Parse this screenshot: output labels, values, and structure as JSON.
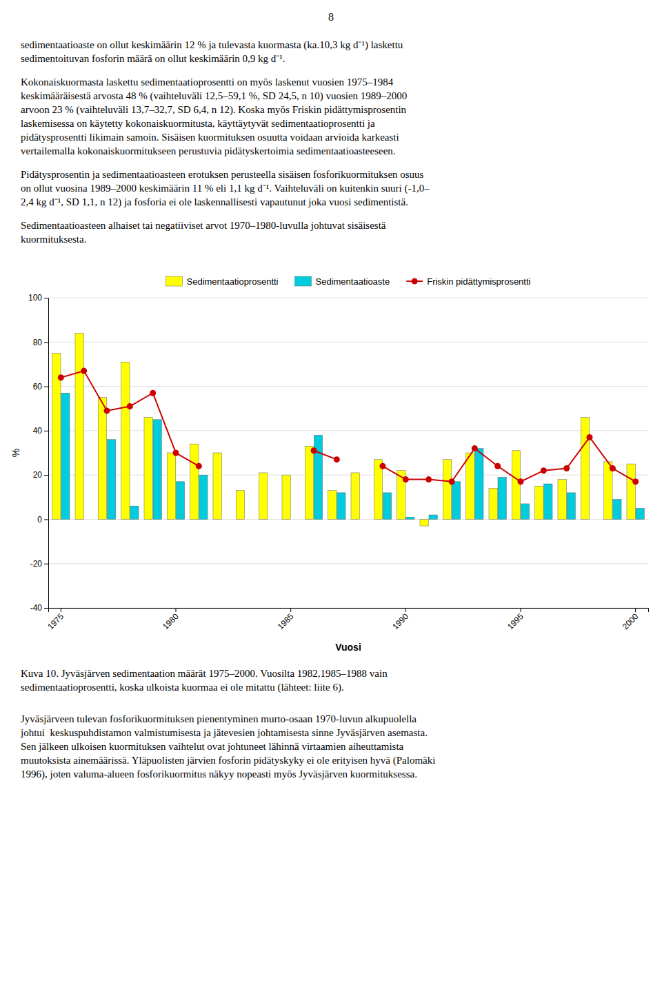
{
  "page_number": "8",
  "paragraphs_before": [
    [
      "sedimentaatioaste on ollut keskimäärin 12 % ja tulevasta kuormasta (ka.10,3 kg d⁻¹) laskettu",
      "sedimentoituvan fosforin määrä on ollut keskimäärin 0,9 kg d⁻¹."
    ],
    [
      "Kokonaiskuormasta laskettu sedimentaatioprosentti on myös laskenut vuosien 1975–1984",
      "keskimääräisestä arvosta 48 % (vaihteluväli 12,5–59,1 %, SD 24,5, n 10) vuosien 1989–2000",
      "arvoon 23 % (vaihteluväli 13,7–32,7, SD 6,4, n 12). Koska myös Friskin pidättymisprosentin",
      "laskemisessa on käytetty kokonaiskuormitusta, käyttäytyvät sedimentaatioprosentti ja",
      "pidätysprosentti likimain samoin. Sisäisen kuormituksen osuutta voidaan arvioida karkeasti",
      "vertailemalla kokonaiskuormitukseen perustuvia pidätyskertoimia sedimentaatioasteeseen."
    ],
    [
      "Pidätysprosentin ja sedimentaatioasteen erotuksen perusteella sisäisen fosforikuormituksen osuus",
      "on ollut vuosina 1989–2000 keskimäärin 11 % eli 1,1 kg d⁻¹. Vaihteluväli on kuitenkin suuri (-1,0–",
      "2,4 kg d⁻¹, SD 1,1, n 12) ja fosforia ei ole laskennallisesti vapautunut joka vuosi sedimentistä."
    ],
    [
      "Sedimentaatioasteen alhaiset tai negatiiviset arvot 1970–1980-luvulla johtuvat sisäisestä",
      "kuormituksesta."
    ]
  ],
  "paragraphs_after": [
    [
      "Jyväsjärveen tulevan fosforikuormituksen pienentyminen murto-osaan 1970-luvun alkupuolella",
      "johtui  keskuspuhdistamon valmistumisesta ja jätevesien johtamisesta sinne Jyväsjärven asemasta.",
      "Sen jälkeen ulkoisen kuormituksen vaihtelut ovat johtuneet lähinnä virtaamien aiheuttamista",
      "muutoksista ainemäärissä. Yläpuolisten järvien fosforin pidätyskyky ei ole erityisen hyvä (Palomäki",
      "1996), joten valuma-alueen fosforikuormitus näkyy nopeasti myös Jyväsjärven kuormituksessa."
    ]
  ],
  "chart_data": {
    "type": "bar",
    "caption": [
      "Kuva 10. Jyväsjärven sedimentaation määrät 1975–2000. Vuosilta 1982,1985–1988 vain",
      "sedimentaatioprosentti, koska ulkoista kuormaa ei ole mitattu (lähteet: liite 6)."
    ],
    "xlabel": "Vuosi",
    "ylabel": "%",
    "categories": [
      "1975",
      null,
      null,
      null,
      null,
      "1980",
      null,
      null,
      null,
      null,
      "1985",
      null,
      null,
      null,
      null,
      "1990",
      null,
      null,
      null,
      null,
      "1995",
      null,
      null,
      null,
      null,
      "2000"
    ],
    "series": [
      {
        "name": "Sedimentaatioprosentti",
        "type": "bar",
        "color": "#FFFF00",
        "values": [
          75,
          84,
          55,
          71,
          46,
          30,
          34,
          30,
          13,
          21,
          20,
          33,
          13,
          21,
          27,
          22,
          -3,
          27,
          30,
          14,
          31,
          15,
          18,
          46,
          26,
          25
        ]
      },
      {
        "name": "Sedimentaatioaste",
        "type": "bar",
        "color": "#00CCDD",
        "values": [
          57,
          null,
          36,
          6,
          45,
          17,
          20,
          null,
          null,
          null,
          null,
          38,
          12,
          null,
          12,
          1,
          2,
          17,
          32,
          19,
          7,
          16,
          12,
          0,
          9,
          5
        ]
      },
      {
        "name": "Friskin pidättymisprosentti",
        "type": "line",
        "color": "#CC0000",
        "marker": "circle",
        "values": [
          64,
          67,
          49,
          51,
          57,
          30,
          24,
          null,
          null,
          null,
          null,
          31,
          27,
          null,
          24,
          18,
          18,
          17,
          32,
          24,
          17,
          22,
          23,
          37,
          23,
          17
        ]
      }
    ],
    "ylim": [
      -40,
      100
    ],
    "yticks": [
      -40,
      -20,
      0,
      20,
      40,
      60,
      80,
      100
    ],
    "grid": true,
    "legend": "top"
  }
}
